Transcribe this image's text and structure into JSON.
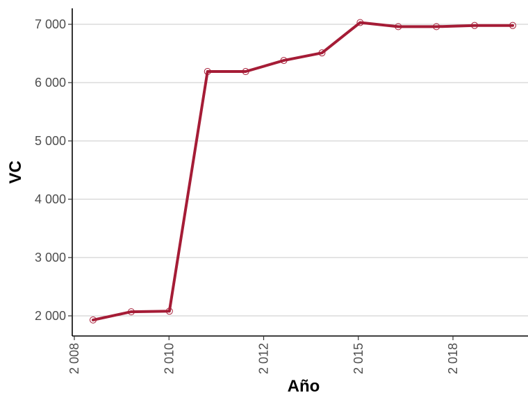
{
  "chart_data": {
    "type": "line",
    "xlabel": "Año",
    "ylabel": "VC",
    "x_tick_labels": [
      "2 008",
      "2 010",
      "2 012",
      "2 015",
      "2 018"
    ],
    "y_tick_labels": [
      "2 000",
      "3 000",
      "4 000",
      "5 000",
      "6 000",
      "7 000"
    ],
    "y_ticks": [
      2000,
      3000,
      4000,
      5000,
      6000,
      7000
    ],
    "series": [
      {
        "color": "#a51c36",
        "points": [
          {
            "i": 0,
            "y": 1930
          },
          {
            "i": 1,
            "y": 2070
          },
          {
            "i": 2,
            "y": 2080
          },
          {
            "i": 3,
            "y": 6190
          },
          {
            "i": 4,
            "y": 6190
          },
          {
            "i": 5,
            "y": 6380
          },
          {
            "i": 6,
            "y": 6510
          },
          {
            "i": 7,
            "y": 7030
          },
          {
            "i": 8,
            "y": 6960
          },
          {
            "i": 9,
            "y": 6960
          },
          {
            "i": 10,
            "y": 6980
          },
          {
            "i": 11,
            "y": 6980
          }
        ]
      }
    ],
    "grid": "horizontal",
    "legend": "none"
  }
}
